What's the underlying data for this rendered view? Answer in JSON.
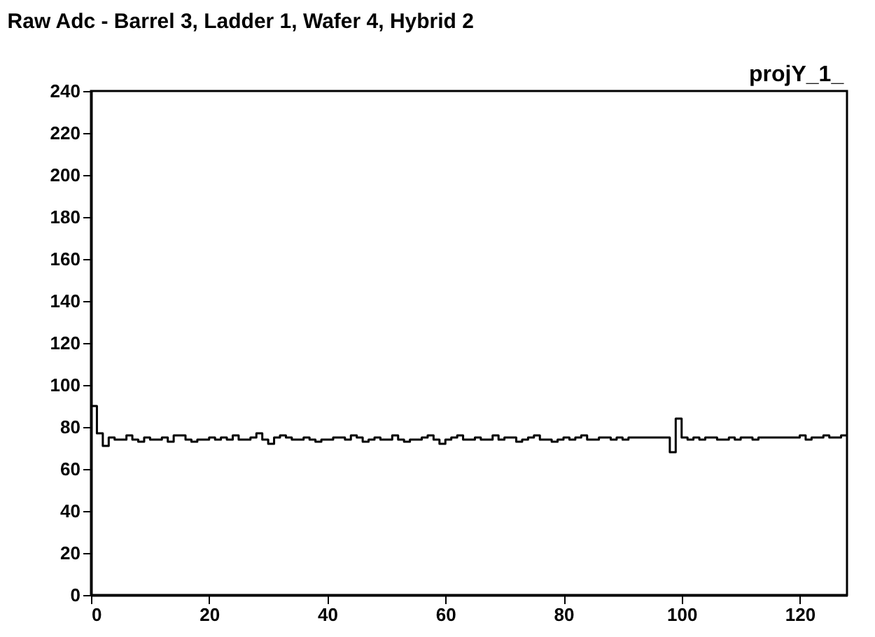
{
  "chart_data": {
    "type": "histogram",
    "title": "Raw Adc - Barrel 3, Ladder 1, Wafer 4, Hybrid 2",
    "annotations": [
      "projY_1_"
    ],
    "bins": [
      0,
      1,
      2,
      3,
      4,
      5,
      6,
      7,
      8,
      9,
      10,
      11,
      12,
      13,
      14,
      15,
      16,
      17,
      18,
      19,
      20,
      21,
      22,
      23,
      24,
      25,
      26,
      27,
      28,
      29,
      30,
      31,
      32,
      33,
      34,
      35,
      36,
      37,
      38,
      39,
      40,
      41,
      42,
      43,
      44,
      45,
      46,
      47,
      48,
      49,
      50,
      51,
      52,
      53,
      54,
      55,
      56,
      57,
      58,
      59,
      60,
      61,
      62,
      63,
      64,
      65,
      66,
      67,
      68,
      69,
      70,
      71,
      72,
      73,
      74,
      75,
      76,
      77,
      78,
      79,
      80,
      81,
      82,
      83,
      84,
      85,
      86,
      87,
      88,
      89,
      90,
      91,
      92,
      93,
      94,
      95,
      96,
      97,
      98,
      99,
      100,
      101,
      102,
      103,
      104,
      105,
      106,
      107,
      108,
      109,
      110,
      111,
      112,
      113,
      114,
      115,
      116,
      117,
      118,
      119,
      120,
      121,
      122,
      123,
      124,
      125,
      126,
      127,
      128
    ],
    "values": [
      90,
      77,
      71,
      75,
      74,
      74,
      76,
      74,
      73,
      75,
      74,
      74,
      75,
      73,
      76,
      76,
      74,
      73,
      74,
      74,
      75,
      74,
      75,
      74,
      76,
      74,
      74,
      75,
      77,
      74,
      72,
      75,
      76,
      75,
      74,
      74,
      75,
      74,
      73,
      74,
      74,
      75,
      75,
      74,
      76,
      75,
      73,
      74,
      75,
      74,
      74,
      76,
      74,
      73,
      74,
      74,
      75,
      76,
      74,
      72,
      74,
      75,
      76,
      74,
      74,
      75,
      74,
      74,
      76,
      74,
      75,
      75,
      73,
      74,
      75,
      76,
      74,
      74,
      73,
      74,
      75,
      74,
      75,
      76,
      74,
      74,
      75,
      75,
      74,
      75,
      74,
      75,
      75,
      75,
      75,
      75,
      75,
      75,
      68,
      84,
      75,
      74,
      75,
      74,
      75,
      75,
      74,
      74,
      75,
      74,
      75,
      75,
      74,
      75,
      75,
      75,
      75,
      75,
      75,
      75,
      76,
      74,
      75,
      75,
      76,
      75,
      75,
      76
    ],
    "color": "#000000",
    "xlim": [
      0,
      128
    ],
    "xticks": [
      0,
      20,
      40,
      60,
      80,
      100,
      120
    ],
    "ylim": [
      0,
      240
    ],
    "yticks": [
      0,
      20,
      40,
      60,
      80,
      100,
      120,
      140,
      160,
      180,
      200,
      220,
      240
    ],
    "grid": false
  }
}
